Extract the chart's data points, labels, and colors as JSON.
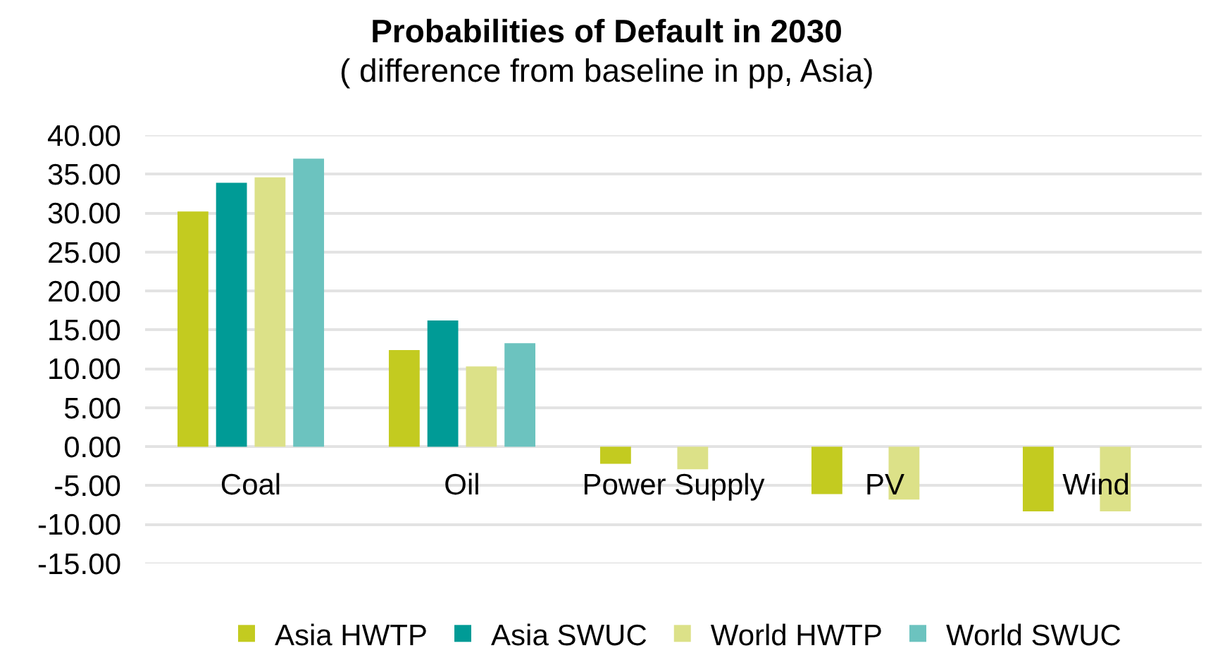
{
  "chart_data": {
    "type": "bar",
    "title": "Probabilities of Default in 2030",
    "subtitle": "( difference from baseline in pp, Asia)",
    "categories": [
      "Coal",
      "Oil",
      "Power Supply",
      "PV",
      "Wind"
    ],
    "series": [
      {
        "name": "Asia HWTP",
        "color": "#c3cb20",
        "values": [
          30.2,
          12.4,
          -2.2,
          -6.1,
          -8.3
        ]
      },
      {
        "name": "Asia SWUC",
        "color": "#009b96",
        "values": [
          33.9,
          16.2,
          0,
          0,
          0
        ]
      },
      {
        "name": "World HWTP",
        "color": "#dce188",
        "values": [
          34.6,
          10.3,
          -2.9,
          -6.8,
          -8.3
        ]
      },
      {
        "name": "World SWUC",
        "color": "#6cc3bf",
        "values": [
          37.0,
          13.3,
          0,
          0,
          0
        ]
      }
    ],
    "ylim": [
      -15,
      40
    ],
    "yticks": [
      {
        "value": -15,
        "label": "-15.00"
      },
      {
        "value": -10,
        "label": "-10.00"
      },
      {
        "value": -5,
        "label": "-5.00"
      },
      {
        "value": 0,
        "label": "0.00"
      },
      {
        "value": 5,
        "label": "5.00"
      },
      {
        "value": 10,
        "label": "10.00"
      },
      {
        "value": 15,
        "label": "15.00"
      },
      {
        "value": 20,
        "label": "20.00"
      },
      {
        "value": 25,
        "label": "25.00"
      },
      {
        "value": 30,
        "label": "30.00"
      },
      {
        "value": 35,
        "label": "35.00"
      },
      {
        "value": 40,
        "label": "40.00"
      }
    ],
    "grid": "y",
    "legend": "bottom"
  }
}
